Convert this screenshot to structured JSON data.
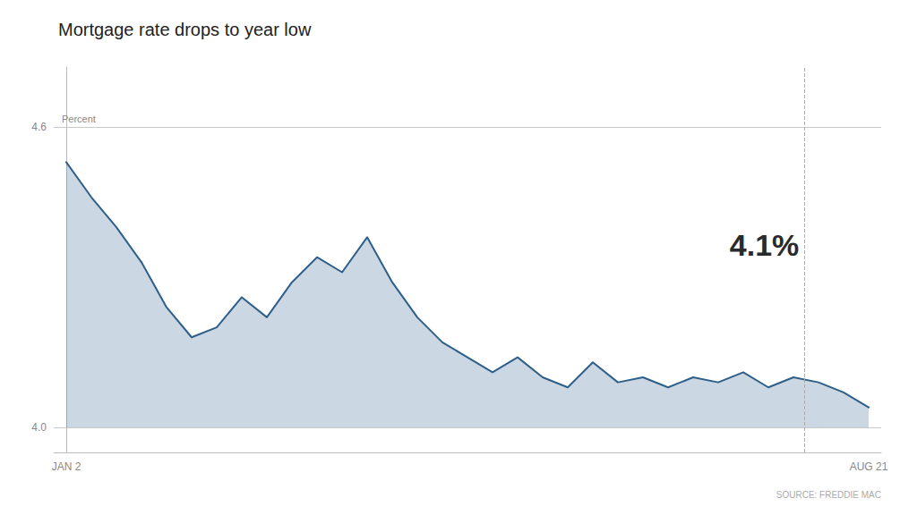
{
  "chart_data": {
    "type": "line",
    "title": "Mortgage rate drops to year low",
    "ylabel": "Percent",
    "annotations": [
      "4.1%"
    ],
    "source": "SOURCE: FREDDIE MAC",
    "categories": [
      "JAN 2",
      null,
      null,
      null,
      null,
      null,
      null,
      null,
      null,
      null,
      null,
      null,
      null,
      null,
      null,
      null,
      null,
      null,
      null,
      null,
      null,
      null,
      null,
      null,
      null,
      null,
      null,
      null,
      null,
      null,
      null,
      null,
      "AUG 21"
    ],
    "values": [
      4.53,
      4.46,
      4.4,
      4.33,
      4.24,
      4.18,
      4.2,
      4.26,
      4.22,
      4.29,
      4.34,
      4.31,
      4.38,
      4.29,
      4.22,
      4.17,
      4.14,
      4.11,
      4.14,
      4.1,
      4.08,
      4.13,
      4.09,
      4.1,
      4.08,
      4.1,
      4.09,
      4.11,
      4.08,
      4.1,
      4.09,
      4.07,
      4.04
    ],
    "color": "#2e5f8a",
    "ylim": [
      3.95,
      4.72
    ],
    "yticks": [
      {
        "value": 4.0,
        "label": "4.0"
      },
      4.6
    ],
    "grid": true
  }
}
